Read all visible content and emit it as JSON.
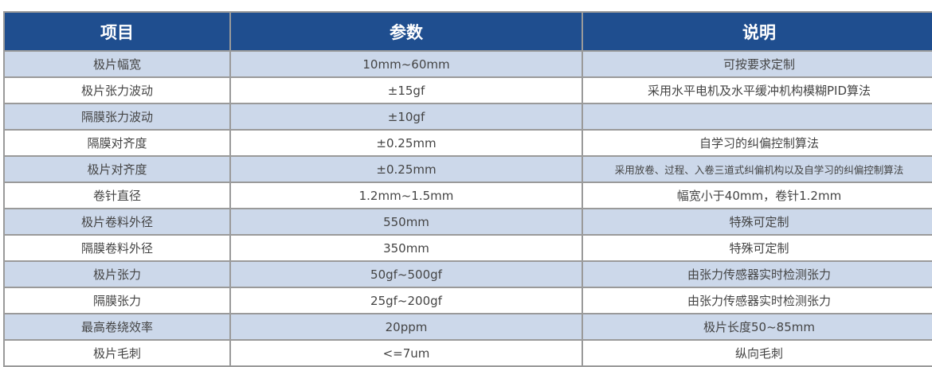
{
  "table": {
    "headers": [
      "项目",
      "参数",
      "说明"
    ],
    "rows": [
      [
        "极片幅宽",
        "10mm~60mm",
        "可按要求定制"
      ],
      [
        "极片张力波动",
        "±15gf",
        "采用水平电机及水平缓冲机构模糊PID算法"
      ],
      [
        "隔膜张力波动",
        "±10gf",
        ""
      ],
      [
        "隔膜对齐度",
        "±0.25mm",
        "自学习的纠偏控制算法"
      ],
      [
        "极片对齐度",
        "±0.25mm",
        "采用放卷、过程、入卷三道式纠偏机构以及自学习的纠偏控制算法"
      ],
      [
        "卷针直径",
        "1.2mm~1.5mm",
        "幅宽小于40mm，卷针1.2mm"
      ],
      [
        "极片卷料外径",
        "550mm",
        "特殊可定制"
      ],
      [
        "隔膜卷料外径",
        "350mm",
        "特殊可定制"
      ],
      [
        "极片张力",
        "50gf~500gf",
        "由张力传感器实时检测张力"
      ],
      [
        "隔膜张力",
        "25gf~200gf",
        "由张力传感器实时检测张力"
      ],
      [
        "最高卷绕效率",
        "20ppm",
        "极片长度50~85mm"
      ],
      [
        "极片毛刺",
        "<=7um",
        "纵向毛刺"
      ]
    ]
  },
  "colors": {
    "header_bg": "#1f4e8f",
    "row_alt_bg": "#ccd8ea",
    "border": "#9a9a9a"
  }
}
